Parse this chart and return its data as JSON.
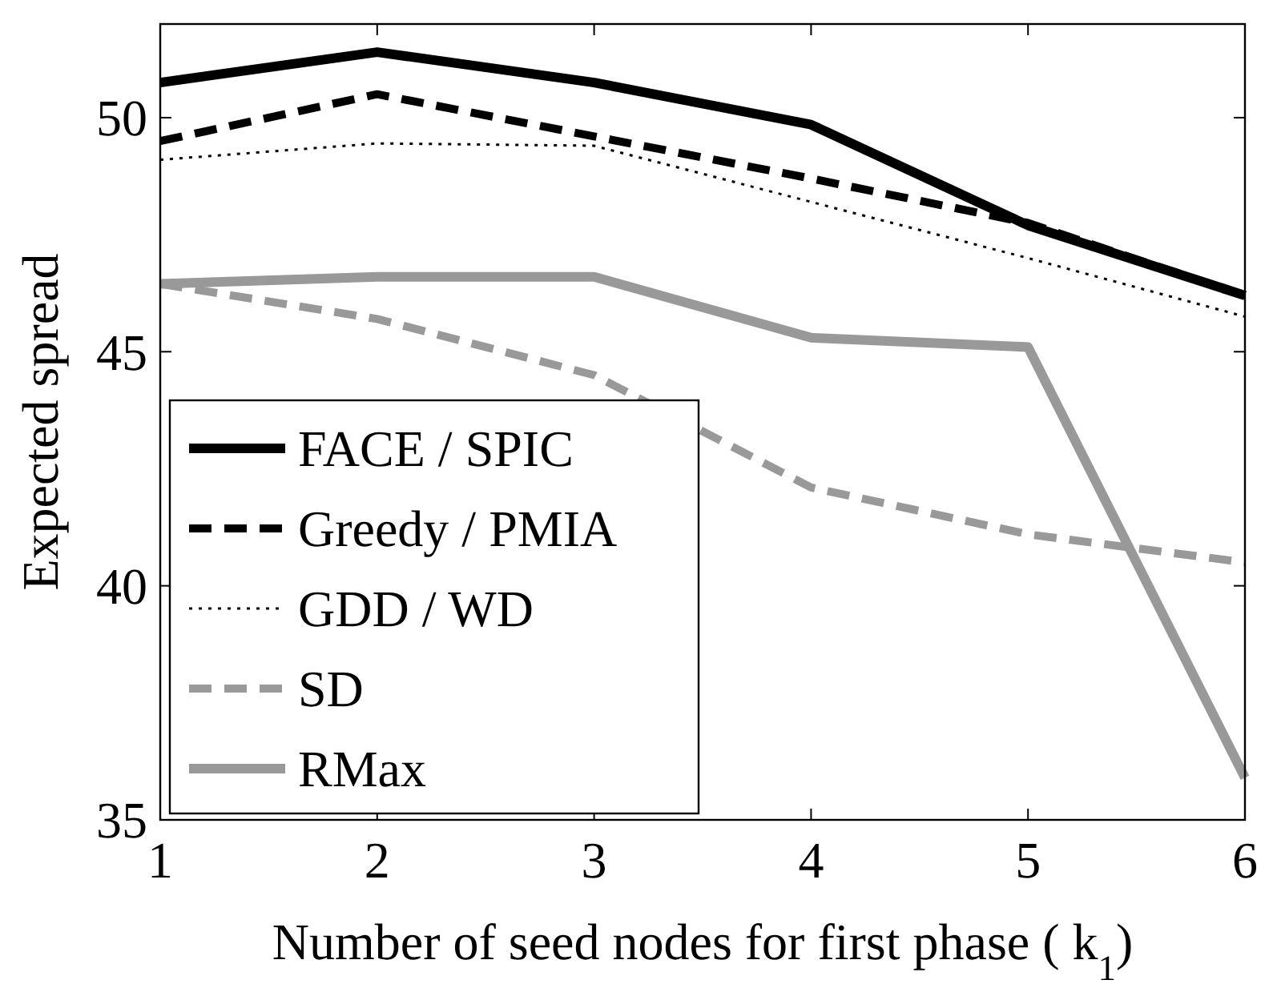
{
  "chart_data": {
    "type": "line",
    "xlabel": "Number of seed nodes for first phase ( k$_{1}$)",
    "ylabel": "Expected spread",
    "x": [
      1,
      2,
      3,
      4,
      5,
      6
    ],
    "xlim": [
      1,
      6
    ],
    "xticks": [
      1,
      2,
      3,
      4,
      5,
      6
    ],
    "ylim": [
      35,
      52
    ],
    "yticks": [
      35,
      40,
      45,
      50
    ],
    "grid": false,
    "legend": "bottom left",
    "marker": "none",
    "series": [
      {
        "name": "FACE / SPIC",
        "color": "#000000",
        "line_style": "solid",
        "values": [
          50.75,
          51.4,
          50.75,
          49.85,
          47.7,
          46.2
        ]
      },
      {
        "name": "Greedy / PMIA",
        "color": "#000000",
        "line_style": "dashed",
        "values": [
          49.5,
          50.5,
          49.6,
          48.7,
          47.75,
          46.2
        ]
      },
      {
        "name": "GDD / WD",
        "color": "#000000",
        "line_style": "dotted",
        "values": [
          49.1,
          49.45,
          49.4,
          48.2,
          47.0,
          45.75
        ]
      },
      {
        "name": "SD",
        "color": "#999999",
        "line_style": "dashed",
        "values": [
          46.45,
          45.7,
          44.5,
          42.1,
          41.1,
          40.5
        ]
      },
      {
        "name": "RMax",
        "color": "#999999",
        "line_style": "solid",
        "values": [
          46.45,
          46.6,
          46.6,
          45.3,
          45.1,
          35.9
        ]
      }
    ]
  }
}
